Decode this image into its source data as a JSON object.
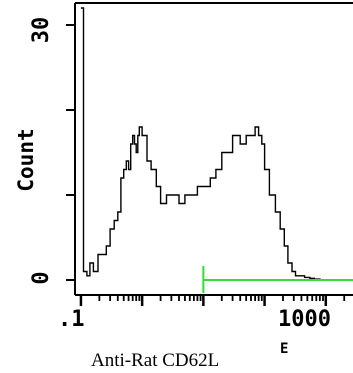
{
  "chart_data": {
    "type": "area",
    "title": "",
    "xlabel": "Anti-Rat CD62L",
    "xlabel_sub": "E",
    "ylabel": "Count",
    "x_scale": "log",
    "xlim": [
      0.08,
      3000
    ],
    "ylim": [
      0,
      32
    ],
    "x_tick_labels": [
      ".1",
      "1000"
    ],
    "y_tick_labels": [
      "0",
      "30"
    ],
    "y_ticks": [
      0,
      30
    ],
    "grid": false,
    "legend": "none",
    "colors": {
      "histogram": "#000000",
      "gate": "#33dd33"
    },
    "gate": {
      "x_start": 10,
      "x_end": 3000,
      "y": 0
    },
    "series": [
      {
        "values_x": [
          0.1,
          0.105,
          0.11,
          0.115,
          0.125,
          0.14,
          0.16,
          0.19,
          0.22,
          0.26,
          0.3,
          0.35,
          0.4,
          0.45,
          0.5,
          0.55,
          0.6,
          0.65,
          0.7,
          0.75,
          0.8,
          0.85,
          0.9,
          1.0,
          1.2,
          1.4,
          1.7,
          2.0,
          2.5,
          3.0,
          4,
          5,
          6,
          8,
          10,
          13,
          16,
          20,
          25,
          30,
          40,
          50,
          60,
          70,
          80,
          90,
          100,
          120,
          150,
          180,
          210,
          240,
          280,
          320,
          380,
          450,
          550,
          650,
          800,
          950
        ],
        "values_y": [
          32,
          32,
          1,
          1,
          0.5,
          2,
          1,
          3,
          3,
          4,
          6,
          7,
          8,
          12,
          13,
          14,
          13,
          16,
          17,
          16,
          15,
          17,
          18,
          17,
          14,
          13,
          11,
          9,
          10,
          10,
          9,
          10,
          10,
          11,
          11,
          12,
          13,
          15,
          15,
          17,
          16,
          17,
          17,
          18,
          17,
          16,
          13,
          10,
          8,
          6,
          4,
          2,
          1,
          0.5,
          0.5,
          0.3,
          0.2,
          0.1,
          0,
          0
        ]
      }
    ]
  }
}
